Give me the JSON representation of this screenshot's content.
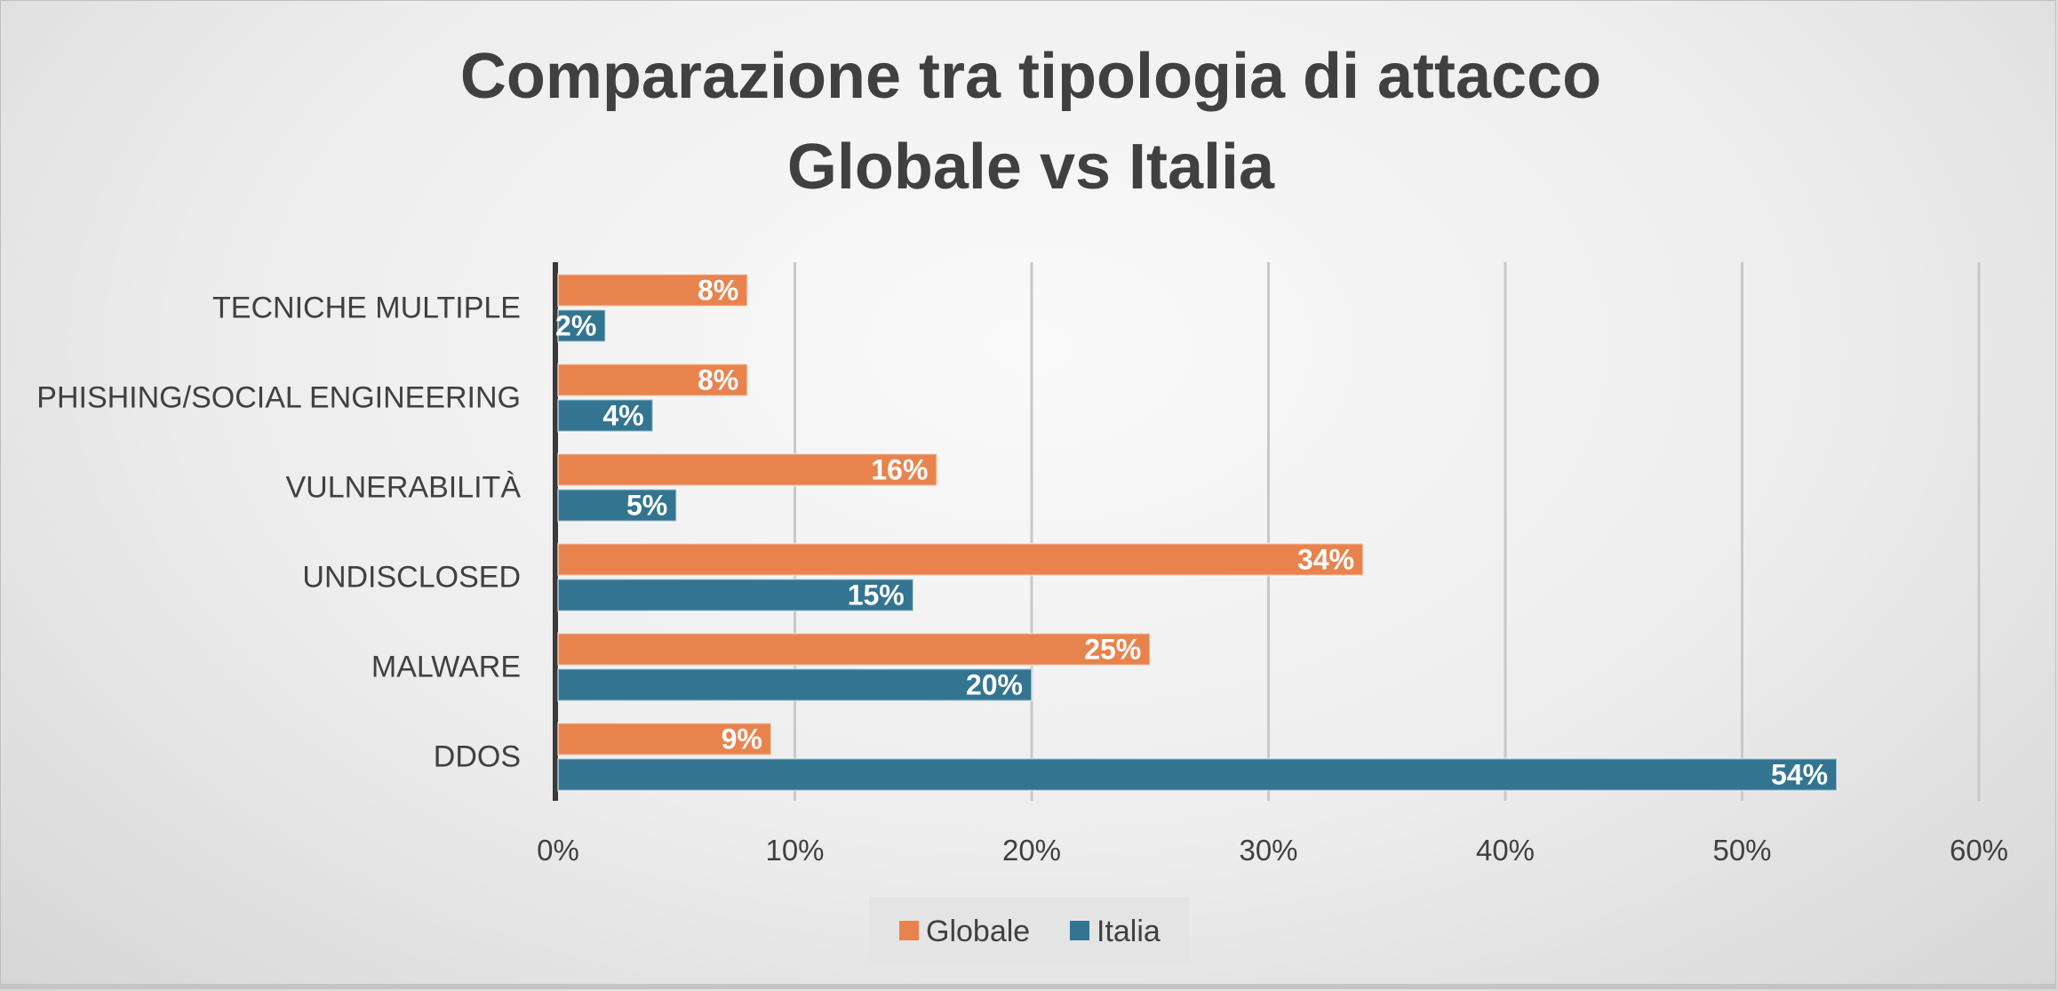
{
  "chart_data": {
    "type": "bar",
    "orientation": "horizontal",
    "title": [
      "Comparazione tra tipologia di attacco",
      "Globale vs Italia"
    ],
    "categories": [
      "TECNICHE MULTIPLE",
      "PHISHING/SOCIAL ENGINEERING",
      "VULNERABILITÀ",
      "UNDISCLOSED",
      "MALWARE",
      "DDOS"
    ],
    "series": [
      {
        "name": "Globale",
        "color": "#E9834E",
        "values": [
          8,
          8,
          16,
          34,
          25,
          9
        ],
        "labels": [
          "8%",
          "8%",
          "16%",
          "34%",
          "25%",
          "9%"
        ]
      },
      {
        "name": "Italia",
        "color": "#337591",
        "values": [
          2,
          4,
          5,
          15,
          20,
          54
        ],
        "labels": [
          "2%",
          "4%",
          "5%",
          "15%",
          "20%",
          "54%"
        ]
      }
    ],
    "xlim": [
      0,
      60
    ],
    "xticks": [
      "0%",
      "10%",
      "20%",
      "30%",
      "40%",
      "50%",
      "60%"
    ],
    "grid": "vertical",
    "legend": "bottom"
  }
}
